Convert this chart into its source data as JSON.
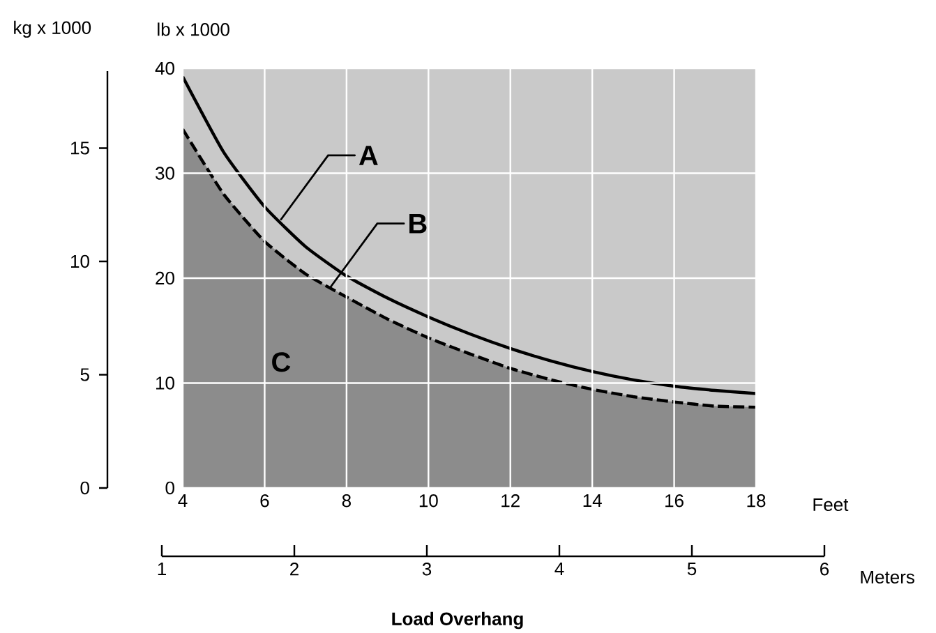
{
  "chart_data": {
    "type": "line",
    "x": [
      4,
      5,
      6,
      7,
      8,
      9,
      10,
      11,
      12,
      13,
      14,
      15,
      16,
      17,
      18
    ],
    "series": [
      {
        "color": "#000000",
        "line_style": "solid",
        "values": [
          39.2,
          32,
          26.8,
          23,
          20.2,
          18.1,
          16.3,
          14.7,
          13.3,
          12.1,
          11.1,
          10.3,
          9.7,
          9.3,
          9.0
        ]
      },
      {
        "type": "area",
        "color": "#8c8c8c",
        "line_style": "dashed",
        "values": [
          34.2,
          28,
          23.5,
          20.4,
          18.2,
          16.1,
          14.3,
          12.8,
          11.4,
          10.3,
          9.4,
          8.7,
          8.2,
          7.8,
          7.7
        ]
      }
    ],
    "xlabel": "Feet",
    "ylabel": "lb x 1000",
    "y2label": "kg x 1000",
    "x2label": "Meters",
    "xlim": [
      4,
      18
    ],
    "xticks": [
      4,
      6,
      8,
      10,
      12,
      14,
      16,
      18
    ],
    "ylim": [
      0,
      40
    ],
    "yticks": [
      0,
      10,
      20,
      30,
      40
    ],
    "y2lim": [
      0,
      18.4
    ],
    "y2ticks": [
      0,
      5,
      10,
      15
    ],
    "x2lim": [
      1,
      6
    ],
    "x2ticks": [
      1,
      2,
      3,
      4,
      5,
      6
    ],
    "grid": true,
    "annotations": [
      {
        "text": "A",
        "x": 6.4,
        "y": 25.6
      },
      {
        "text": "B",
        "x": 7.6,
        "y": 19.1
      },
      "C",
      "Load Overhang"
    ]
  }
}
